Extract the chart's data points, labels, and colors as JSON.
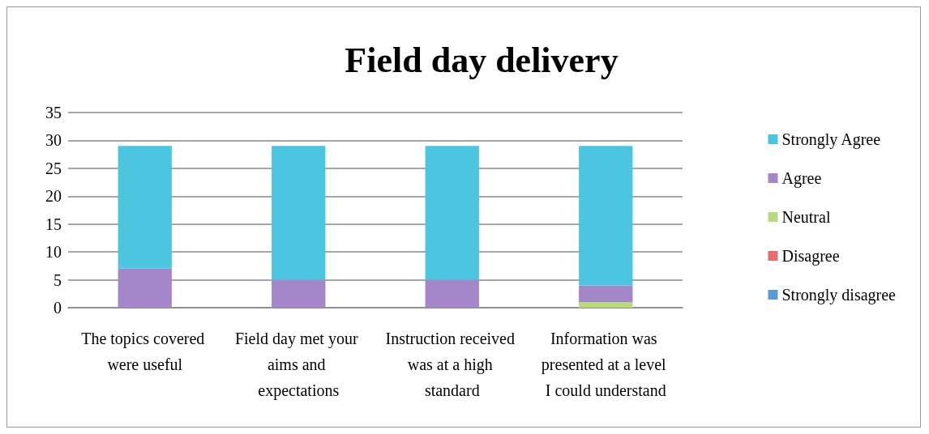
{
  "chart_data": {
    "type": "bar",
    "title": "Field day delivery",
    "categories": [
      "The topics covered were useful",
      "Field day met your aims and expectations",
      "Instruction received was at a high standard",
      "Information was presented at a level I could understand"
    ],
    "stacked": true,
    "series": [
      {
        "name": "Strongly disagree",
        "color": "#5b9bd5",
        "values": [
          0,
          0,
          0,
          0
        ]
      },
      {
        "name": "Disagree",
        "color": "#e46c6c",
        "values": [
          0,
          0,
          0,
          0
        ]
      },
      {
        "name": "Neutral",
        "color": "#b7dd7a",
        "values": [
          0,
          0,
          0,
          1
        ]
      },
      {
        "name": "Agree",
        "color": "#a487c8",
        "values": [
          7,
          5,
          5,
          3
        ]
      },
      {
        "name": "Strongly Agree",
        "color": "#4bc5e0",
        "values": [
          22,
          24,
          24,
          25
        ]
      }
    ],
    "ylim": [
      0,
      35
    ],
    "yticks": [
      0,
      5,
      10,
      15,
      20,
      25,
      30,
      35
    ],
    "grid": "y",
    "legend": "right"
  }
}
